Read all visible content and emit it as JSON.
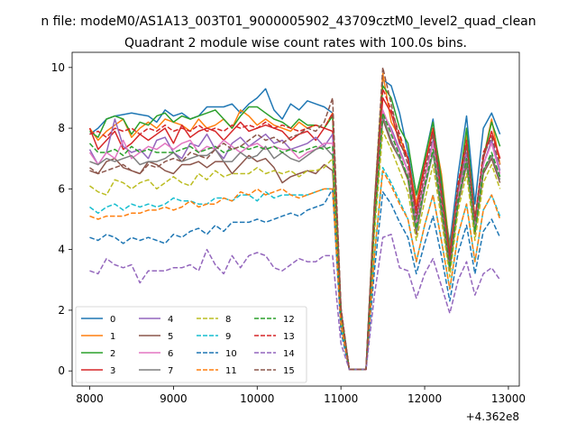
{
  "figure": {
    "suptitle": "n file: modeM0/AS1A13_003T01_9000005902_43709cztM0_level2_quad_clean",
    "title": "Quadrant 2 module wise count rates with 100.0s bins.",
    "x_offset_label": "+4.362e8"
  },
  "chart_data": {
    "type": "line",
    "title": "Quadrant 2 module wise count rates with 100.0s bins.",
    "xlabel": "",
    "ylabel": "",
    "x_offset": "+4.362e8",
    "xlim": [
      7790,
      13130
    ],
    "ylim": [
      -0.5,
      10.5
    ],
    "xticks": [
      8000,
      9000,
      10000,
      11000,
      12000,
      13000
    ],
    "yticks": [
      0,
      2,
      4,
      6,
      8,
      10
    ],
    "grid": false,
    "legend_position": "lower-left",
    "legend_columns": 4,
    "x": [
      8000,
      8100,
      8200,
      8300,
      8400,
      8500,
      8600,
      8700,
      8800,
      8900,
      9000,
      9100,
      9200,
      9300,
      9400,
      9500,
      9600,
      9700,
      9800,
      9900,
      10000,
      10100,
      10200,
      10300,
      10400,
      10500,
      10600,
      10700,
      10800,
      10900,
      11000,
      11100,
      11200,
      11300,
      11400,
      11500,
      11600,
      11700,
      11800,
      11900,
      12000,
      12100,
      12200,
      12300,
      12400,
      12500,
      12600,
      12700,
      12800,
      12900
    ],
    "series": [
      {
        "name": "0",
        "color": "#1f77b4",
        "dash": "solid",
        "values": [
          7.8,
          8.0,
          8.3,
          8.4,
          8.45,
          8.5,
          8.45,
          8.4,
          8.2,
          8.6,
          8.4,
          8.5,
          8.3,
          8.4,
          8.7,
          8.7,
          8.7,
          8.8,
          8.5,
          8.8,
          9.0,
          9.3,
          8.6,
          8.3,
          8.8,
          8.6,
          8.9,
          8.8,
          8.7,
          8.5,
          2.0,
          0.05,
          0.05,
          0.05,
          5.5,
          9.6,
          9.4,
          8.5,
          7.2,
          5.5,
          7.0,
          8.3,
          6.0,
          4.2,
          6.5,
          8.4,
          5.5,
          8.0,
          8.5,
          7.8
        ]
      },
      {
        "name": "1",
        "color": "#ff7f0e",
        "dash": "solid",
        "values": [
          8.0,
          7.6,
          7.9,
          8.1,
          8.3,
          7.7,
          8.0,
          8.2,
          8.0,
          8.3,
          8.2,
          8.1,
          7.9,
          8.3,
          8.0,
          8.1,
          8.3,
          8.0,
          8.6,
          8.4,
          8.1,
          8.3,
          8.1,
          8.0,
          7.9,
          8.2,
          8.0,
          8.1,
          8.0,
          8.5,
          2.0,
          0.05,
          0.05,
          0.05,
          5.5,
          9.8,
          8.2,
          7.7,
          7.0,
          5.5,
          6.8,
          8.0,
          6.5,
          4.0,
          6.0,
          7.8,
          5.0,
          7.0,
          8.3,
          6.8
        ]
      },
      {
        "name": "2",
        "color": "#2ca02c",
        "dash": "solid",
        "values": [
          7.9,
          7.7,
          8.3,
          8.4,
          8.3,
          7.8,
          8.2,
          8.1,
          8.4,
          8.5,
          8.2,
          8.4,
          8.3,
          8.4,
          8.5,
          8.6,
          8.3,
          8.0,
          8.4,
          8.7,
          8.7,
          8.5,
          8.3,
          8.2,
          8.0,
          8.3,
          8.1,
          8.1,
          8.0,
          8.4,
          2.0,
          0.05,
          0.05,
          0.05,
          5.5,
          9.4,
          9.0,
          8.0,
          7.5,
          5.8,
          7.0,
          8.2,
          6.3,
          3.9,
          6.0,
          8.0,
          5.0,
          7.0,
          8.2,
          7.4
        ]
      },
      {
        "name": "3",
        "color": "#d62728",
        "dash": "solid",
        "values": [
          8.0,
          7.3,
          7.6,
          7.9,
          7.3,
          7.5,
          7.8,
          7.6,
          7.8,
          8.0,
          7.5,
          8.1,
          7.7,
          7.9,
          8.0,
          7.9,
          7.6,
          7.9,
          8.2,
          7.9,
          8.0,
          8.1,
          8.0,
          7.9,
          7.6,
          7.8,
          7.9,
          7.6,
          8.0,
          7.9,
          2.0,
          0.05,
          0.05,
          0.05,
          5.3,
          9.0,
          8.5,
          7.5,
          7.0,
          5.3,
          6.8,
          7.9,
          5.8,
          3.8,
          6.0,
          7.5,
          5.0,
          7.0,
          7.9,
          7.0
        ]
      },
      {
        "name": "4",
        "color": "#9467bd",
        "dash": "solid",
        "values": [
          7.3,
          6.8,
          7.2,
          8.3,
          7.4,
          7.2,
          7.3,
          7.0,
          7.6,
          7.7,
          7.2,
          7.0,
          7.5,
          7.4,
          7.8,
          7.3,
          7.0,
          7.5,
          7.7,
          7.4,
          7.6,
          7.8,
          7.5,
          7.6,
          7.3,
          7.4,
          7.5,
          7.7,
          7.4,
          7.8,
          2.0,
          0.05,
          0.05,
          0.05,
          5.0,
          8.5,
          8.0,
          7.3,
          6.6,
          5.0,
          6.3,
          7.6,
          5.5,
          3.5,
          5.8,
          7.2,
          4.8,
          6.8,
          7.6,
          6.6
        ]
      },
      {
        "name": "5",
        "color": "#8c564b",
        "dash": "solid",
        "values": [
          6.6,
          6.5,
          6.9,
          7.0,
          6.7,
          6.6,
          6.5,
          6.9,
          6.8,
          6.6,
          6.5,
          6.8,
          6.8,
          6.9,
          6.7,
          6.9,
          6.9,
          6.5,
          6.8,
          7.1,
          6.9,
          7.0,
          6.7,
          6.2,
          6.4,
          6.5,
          6.6,
          6.5,
          6.8,
          6.6,
          1.8,
          0.05,
          0.05,
          0.05,
          4.8,
          8.3,
          7.5,
          7.0,
          6.3,
          4.5,
          6.0,
          7.2,
          5.2,
          3.3,
          5.5,
          6.8,
          4.5,
          6.5,
          7.0,
          6.2
        ]
      },
      {
        "name": "6",
        "color": "#e377c2",
        "dash": "solid",
        "values": [
          7.2,
          6.8,
          7.2,
          7.0,
          7.6,
          7.0,
          7.2,
          7.4,
          7.3,
          7.5,
          7.3,
          7.5,
          7.6,
          7.2,
          7.4,
          7.3,
          7.6,
          7.4,
          7.2,
          7.4,
          7.5,
          7.3,
          7.4,
          7.3,
          7.3,
          7.0,
          7.2,
          7.3,
          7.5,
          7.5,
          2.0,
          0.05,
          0.05,
          0.05,
          5.0,
          8.6,
          7.9,
          7.2,
          6.6,
          4.8,
          6.3,
          7.5,
          5.5,
          3.5,
          5.8,
          7.0,
          4.8,
          6.8,
          7.5,
          6.5
        ]
      },
      {
        "name": "7",
        "color": "#7f7f7f",
        "dash": "solid",
        "values": [
          6.9,
          6.8,
          7.0,
          6.9,
          7.0,
          7.1,
          6.8,
          6.9,
          6.9,
          7.0,
          7.2,
          6.9,
          7.0,
          7.1,
          7.1,
          7.3,
          6.9,
          6.9,
          7.2,
          7.0,
          7.1,
          7.4,
          7.0,
          7.2,
          7.0,
          6.9,
          7.1,
          7.3,
          7.4,
          7.1,
          1.9,
          0.05,
          0.05,
          0.05,
          4.8,
          8.4,
          7.6,
          7.0,
          6.4,
          4.6,
          6.0,
          7.2,
          5.3,
          3.4,
          5.6,
          6.9,
          4.6,
          6.6,
          7.1,
          6.3
        ]
      },
      {
        "name": "8",
        "color": "#bcbd22",
        "dash": "dashed",
        "values": [
          6.1,
          5.9,
          5.8,
          6.3,
          6.2,
          6.0,
          6.2,
          6.3,
          6.0,
          6.2,
          6.4,
          6.2,
          6.1,
          6.5,
          6.3,
          6.6,
          6.4,
          6.5,
          6.5,
          6.5,
          6.7,
          6.5,
          6.6,
          6.5,
          6.6,
          6.4,
          6.6,
          6.6,
          6.7,
          7.0,
          1.8,
          0.05,
          0.05,
          0.05,
          4.5,
          7.9,
          7.3,
          6.6,
          5.9,
          4.3,
          5.6,
          6.8,
          5.0,
          3.1,
          5.3,
          6.5,
          4.3,
          6.2,
          6.8,
          6.0
        ]
      },
      {
        "name": "9",
        "color": "#17becf",
        "dash": "dashed",
        "values": [
          5.4,
          5.2,
          5.4,
          5.5,
          5.3,
          5.5,
          5.4,
          5.5,
          5.4,
          5.5,
          5.7,
          5.6,
          5.6,
          5.5,
          5.5,
          5.7,
          5.7,
          5.6,
          5.8,
          5.8,
          5.6,
          5.9,
          5.7,
          5.8,
          5.8,
          5.8,
          5.8,
          5.9,
          6.0,
          6.0,
          1.5,
          0.05,
          0.05,
          0.05,
          3.8,
          6.7,
          6.2,
          5.6,
          5.0,
          3.6,
          4.8,
          5.8,
          4.3,
          2.7,
          4.5,
          5.5,
          3.6,
          5.3,
          5.8,
          5.1
        ]
      },
      {
        "name": "10",
        "color": "#1f77b4",
        "dash": "dashed",
        "values": [
          4.4,
          4.3,
          4.5,
          4.4,
          4.2,
          4.4,
          4.3,
          4.4,
          4.3,
          4.2,
          4.5,
          4.4,
          4.6,
          4.7,
          4.5,
          4.8,
          4.6,
          4.9,
          4.9,
          4.9,
          5.0,
          4.9,
          5.0,
          5.1,
          5.2,
          5.1,
          5.3,
          5.4,
          5.5,
          6.0,
          1.3,
          0.05,
          0.05,
          0.05,
          3.3,
          5.9,
          5.5,
          4.9,
          4.4,
          3.2,
          4.2,
          5.1,
          3.8,
          2.3,
          3.9,
          4.8,
          3.2,
          4.6,
          5.0,
          4.4
        ]
      },
      {
        "name": "11",
        "color": "#ff7f0e",
        "dash": "dashed",
        "values": [
          5.1,
          5.0,
          5.1,
          5.1,
          5.1,
          5.2,
          5.2,
          5.3,
          5.3,
          5.4,
          5.3,
          5.4,
          5.6,
          5.4,
          5.5,
          5.5,
          5.7,
          5.6,
          5.9,
          5.8,
          6.0,
          5.8,
          5.9,
          6.0,
          5.8,
          5.7,
          5.8,
          5.9,
          6.0,
          6.0,
          1.5,
          0.05,
          0.05,
          0.05,
          3.8,
          6.6,
          6.1,
          5.5,
          5.0,
          3.6,
          4.8,
          5.8,
          4.3,
          2.7,
          4.5,
          5.5,
          3.6,
          5.3,
          5.8,
          5.0
        ]
      },
      {
        "name": "12",
        "color": "#2ca02c",
        "dash": "dashed",
        "values": [
          7.5,
          7.2,
          7.2,
          7.3,
          7.1,
          7.4,
          7.2,
          7.3,
          7.2,
          7.2,
          7.2,
          7.3,
          7.4,
          7.2,
          7.3,
          7.4,
          7.2,
          7.3,
          7.4,
          7.3,
          7.4,
          7.3,
          7.4,
          7.2,
          7.3,
          7.2,
          7.3,
          7.4,
          7.3,
          7.4,
          1.9,
          0.05,
          0.05,
          0.05,
          4.9,
          8.5,
          7.8,
          7.1,
          6.4,
          4.7,
          6.1,
          7.3,
          5.4,
          3.4,
          5.6,
          7.0,
          4.6,
          6.6,
          7.2,
          6.4
        ]
      },
      {
        "name": "13",
        "color": "#d62728",
        "dash": "dashed",
        "values": [
          7.8,
          7.9,
          7.7,
          8.0,
          7.9,
          8.0,
          7.8,
          8.0,
          7.9,
          8.1,
          7.9,
          8.0,
          7.9,
          8.1,
          7.9,
          8.0,
          7.9,
          8.1,
          8.0,
          8.1,
          8.0,
          8.2,
          8.0,
          8.1,
          8.0,
          7.9,
          8.0,
          8.1,
          8.0,
          8.5,
          2.0,
          0.05,
          0.05,
          0.05,
          5.3,
          9.3,
          8.6,
          7.8,
          7.0,
          5.2,
          6.7,
          8.0,
          5.9,
          3.7,
          6.2,
          7.6,
          5.0,
          7.2,
          7.8,
          7.0
        ]
      },
      {
        "name": "14",
        "color": "#9467bd",
        "dash": "dashed",
        "values": [
          3.3,
          3.2,
          3.7,
          3.5,
          3.4,
          3.5,
          2.9,
          3.3,
          3.3,
          3.3,
          3.4,
          3.4,
          3.5,
          3.3,
          4.0,
          3.5,
          3.2,
          3.8,
          3.4,
          3.8,
          3.9,
          3.8,
          3.4,
          3.3,
          3.5,
          3.7,
          3.6,
          3.6,
          3.8,
          3.8,
          0.9,
          0.05,
          0.05,
          0.05,
          2.5,
          4.4,
          4.5,
          3.4,
          3.3,
          2.4,
          3.2,
          3.7,
          2.8,
          1.9,
          3.0,
          3.6,
          2.5,
          3.2,
          3.4,
          3.0
        ]
      },
      {
        "name": "15",
        "color": "#8c564b",
        "dash": "dashed",
        "values": [
          6.7,
          6.5,
          6.6,
          6.7,
          6.8,
          6.6,
          6.5,
          6.8,
          6.7,
          6.9,
          7.0,
          6.9,
          7.2,
          7.1,
          7.0,
          7.3,
          7.5,
          7.3,
          7.4,
          7.6,
          7.8,
          7.6,
          7.7,
          7.5,
          7.7,
          7.8,
          8.0,
          7.9,
          8.2,
          9.0,
          2.1,
          0.05,
          0.05,
          0.05,
          5.5,
          10.0,
          8.8,
          7.6,
          6.8,
          5.0,
          6.5,
          7.8,
          5.7,
          3.6,
          6.0,
          7.4,
          4.9,
          7.1,
          7.7,
          6.8
        ]
      }
    ]
  }
}
